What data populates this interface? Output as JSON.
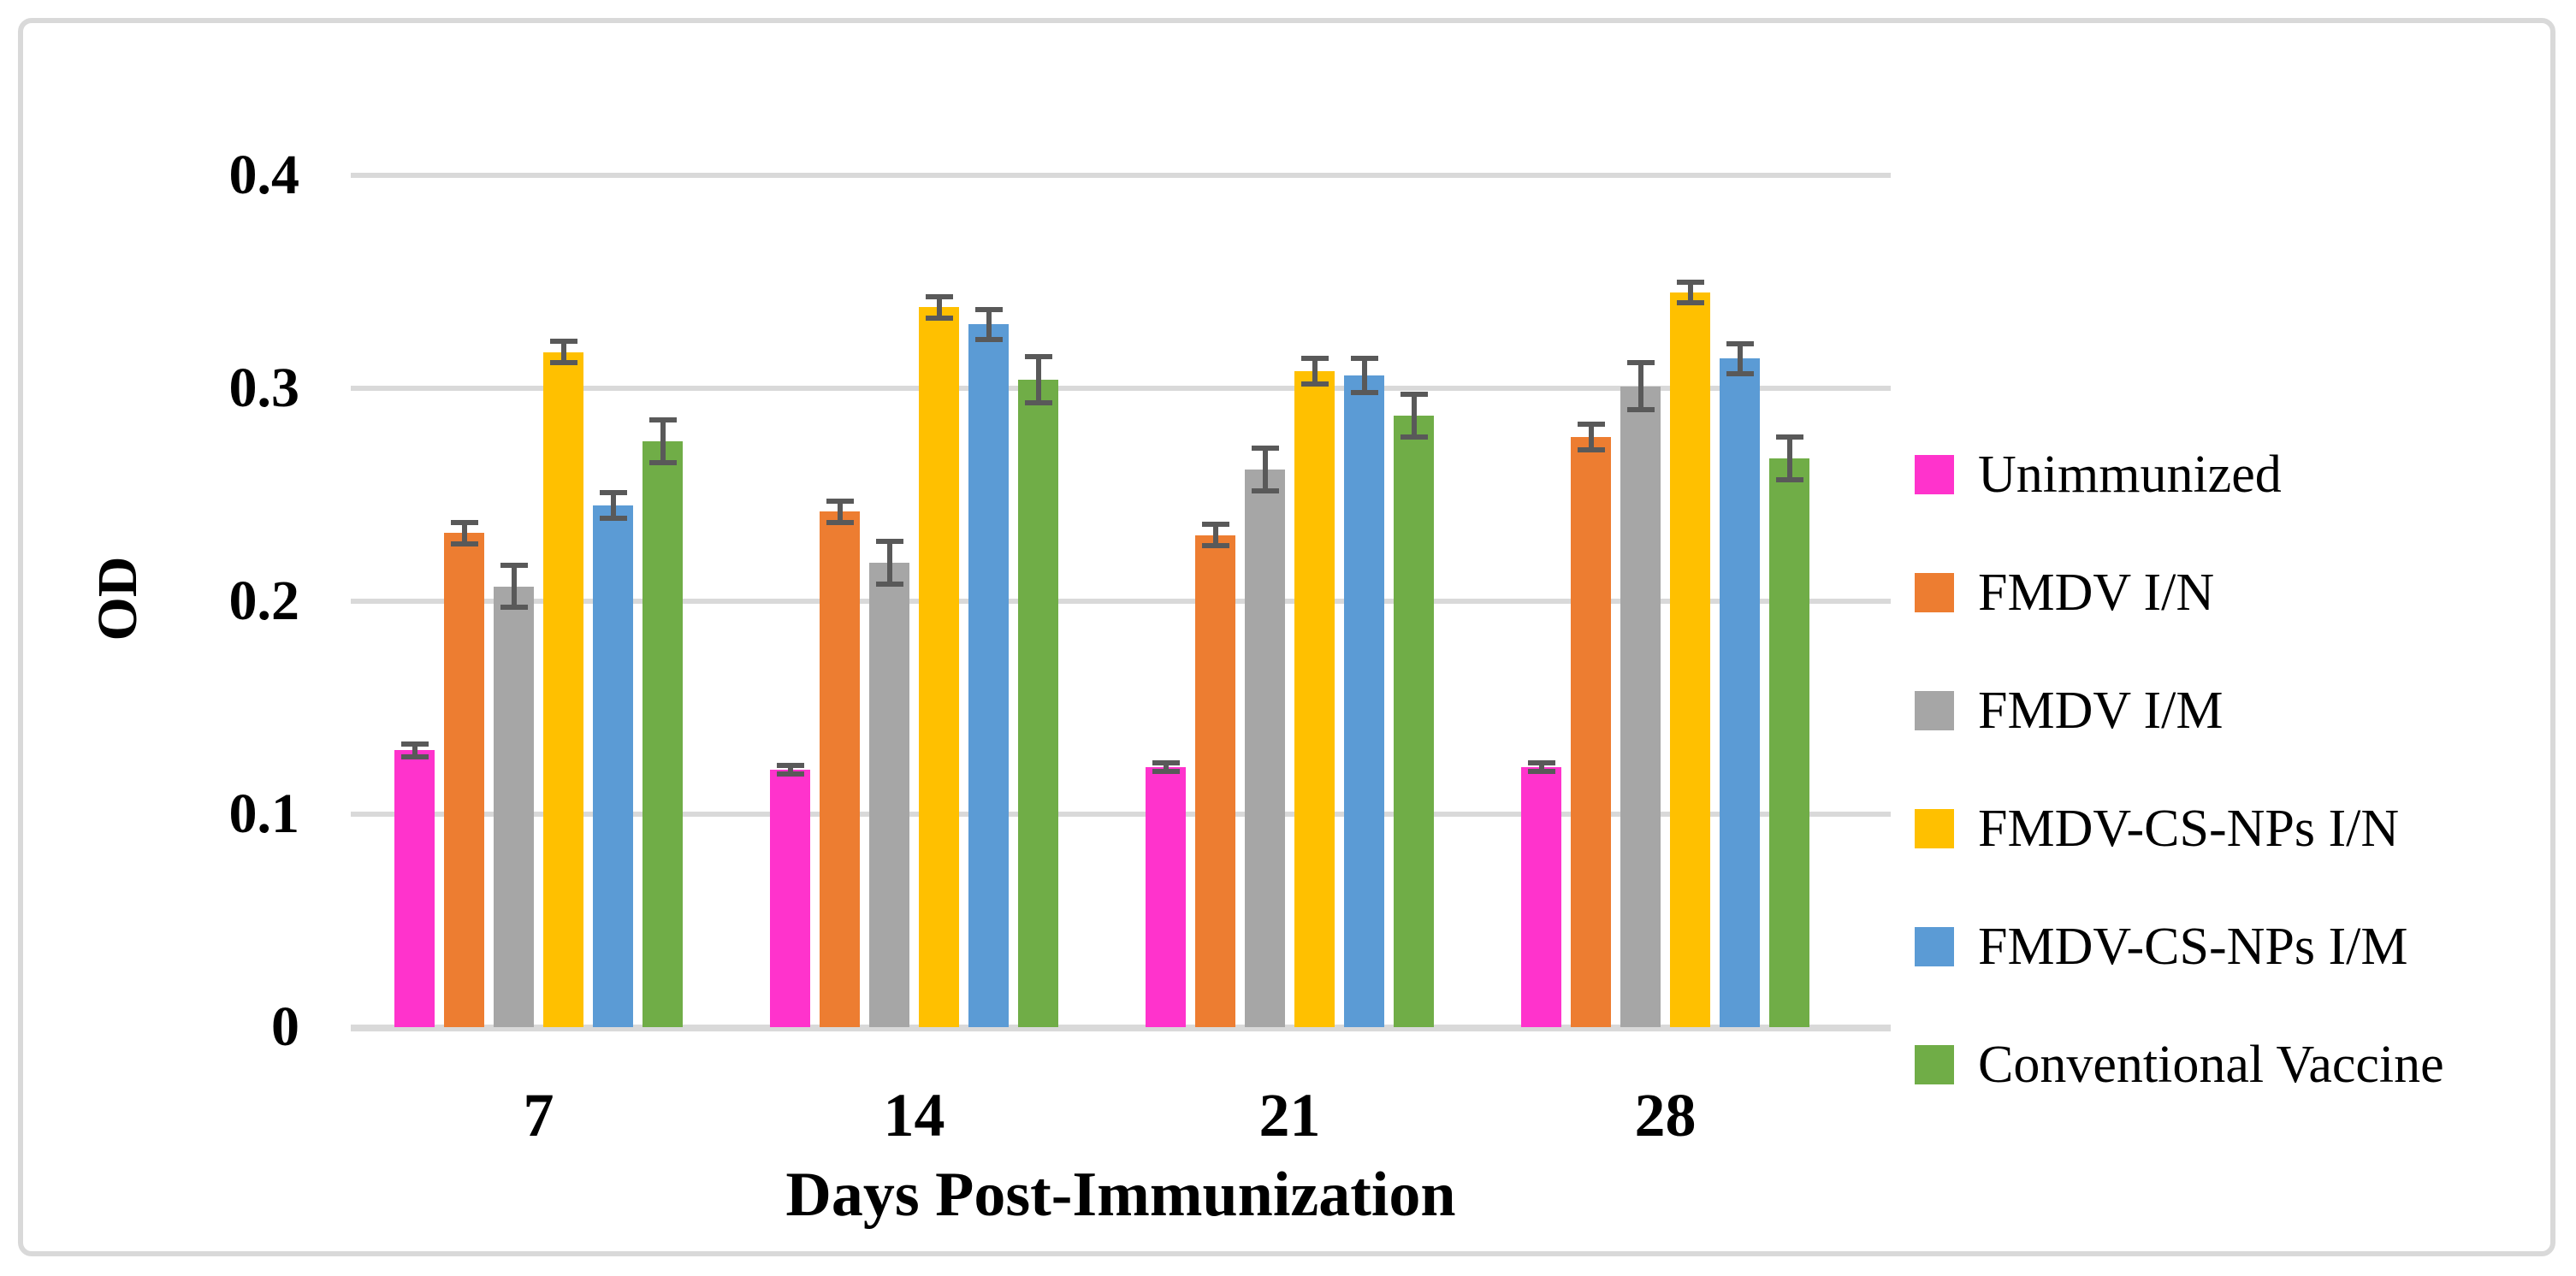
{
  "figure": {
    "background_color": "#FFFFFF",
    "border_color": "#D9D9D9"
  },
  "chart_data": {
    "type": "bar",
    "title": "",
    "xlabel": "Days Post-Immunization",
    "ylabel": "OD",
    "categories": [
      "7",
      "14",
      "21",
      "28"
    ],
    "y_ticks": [
      "0",
      "0.1",
      "0.2",
      "0.3",
      "0.4"
    ],
    "y_tick_values": [
      0,
      0.1,
      0.2,
      0.3,
      0.4
    ],
    "ylim": [
      0,
      0.4
    ],
    "grid": true,
    "legend_position": "right",
    "gridline_color": "#D9D9D9",
    "error_bar_color": "#595959",
    "series": [
      {
        "name": "Unimmunized",
        "color": "#FF33CC",
        "values": [
          0.13,
          0.121,
          0.122,
          0.122
        ],
        "errors": [
          0.003,
          0.002,
          0.002,
          0.002
        ]
      },
      {
        "name": "FMDV I/N",
        "color": "#ED7D31",
        "values": [
          0.232,
          0.242,
          0.231,
          0.277
        ],
        "errors": [
          0.005,
          0.005,
          0.005,
          0.006
        ]
      },
      {
        "name": "FMDV I/M",
        "color": "#A6A6A6",
        "values": [
          0.207,
          0.218,
          0.262,
          0.301
        ],
        "errors": [
          0.01,
          0.01,
          0.01,
          0.011
        ]
      },
      {
        "name": "FMDV-CS-NPs I/N",
        "color": "#FFC000",
        "values": [
          0.317,
          0.338,
          0.308,
          0.345
        ],
        "errors": [
          0.005,
          0.005,
          0.006,
          0.005
        ]
      },
      {
        "name": "FMDV-CS-NPs I/M",
        "color": "#5B9BD5",
        "values": [
          0.245,
          0.33,
          0.306,
          0.314
        ],
        "errors": [
          0.006,
          0.007,
          0.008,
          0.007
        ]
      },
      {
        "name": "Conventional Vaccine",
        "color": "#70AD47",
        "values": [
          0.275,
          0.304,
          0.287,
          0.267
        ],
        "errors": [
          0.01,
          0.011,
          0.01,
          0.01
        ]
      }
    ]
  }
}
